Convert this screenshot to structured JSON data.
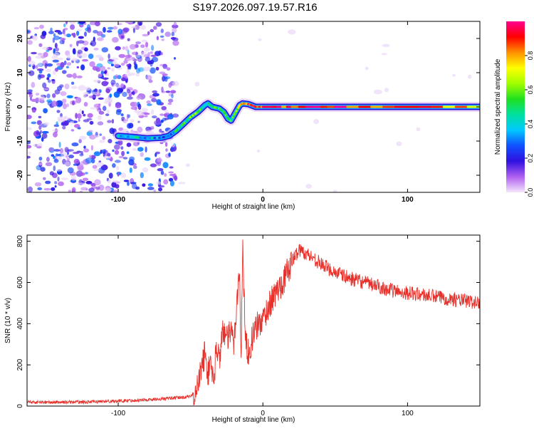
{
  "title": "S197.2026.097.19.57.R16",
  "chart_data": [
    {
      "type": "heatmap",
      "xlabel": "Height of straight line (km)",
      "ylabel": "Frequency (Hz)",
      "xlim": [
        -163,
        150
      ],
      "ylim": [
        -25,
        25
      ],
      "xticks": [
        -100,
        0,
        100
      ],
      "yticks": [
        -20,
        -10,
        0,
        10,
        20
      ],
      "colorbar": {
        "label": "Normalized spectral amplitude",
        "range": [
          0.0,
          1.0
        ],
        "ticks": [
          "0.0",
          "0.2",
          "0.4",
          "0.6",
          "0.8"
        ],
        "colors": [
          "#f4e6fb",
          "#b060f0",
          "#3010e0",
          "#1050ff",
          "#00c8ff",
          "#00e0a0",
          "#20e020",
          "#a0ff00",
          "#ffff00",
          "#ff9000",
          "#ff0000",
          "#ff0090"
        ]
      },
      "ridge": {
        "x": [
          -100,
          -90,
          -80,
          -70,
          -65,
          -60,
          -55,
          -50,
          -45,
          -40,
          -38,
          -35,
          -30,
          -27,
          -24,
          -22,
          -20,
          -18,
          -16,
          -14,
          -10,
          -5,
          0,
          20,
          50,
          100,
          150
        ],
        "y": [
          -8.5,
          -8.8,
          -9.2,
          -9.0,
          -8.5,
          -7.0,
          -5.0,
          -3.0,
          -1.5,
          0.5,
          1.0,
          0.0,
          -0.5,
          -1.5,
          -3.5,
          -4.0,
          -2.5,
          -1.0,
          0.5,
          1.0,
          0.8,
          0.0,
          0.0,
          0.0,
          0.0,
          0.0,
          0.0
        ],
        "amplitude": [
          0.35,
          0.38,
          0.36,
          0.32,
          0.25,
          0.45,
          0.5,
          0.55,
          0.6,
          0.5,
          0.45,
          0.55,
          0.5,
          0.55,
          0.45,
          0.5,
          0.55,
          0.65,
          0.75,
          0.8,
          0.85,
          0.95,
          0.9,
          0.9,
          0.88,
          0.85,
          0.8
        ]
      }
    },
    {
      "type": "line",
      "xlabel": "Height of straight line (km)",
      "ylabel": "SNR (10 * v/v)",
      "xlim": [
        -163,
        150
      ],
      "ylim": [
        0,
        830
      ],
      "xticks": [
        -100,
        0,
        100
      ],
      "yticks": [
        0,
        200,
        400,
        600,
        800
      ],
      "series": [
        {
          "name": "SNR",
          "color": "#e8302a",
          "x": [
            -163,
            -150,
            -120,
            -100,
            -80,
            -70,
            -60,
            -50,
            -45,
            -42,
            -40,
            -38,
            -36,
            -34,
            -32,
            -30,
            -28,
            -25,
            -22,
            -20,
            -18,
            -16,
            -15,
            -14,
            -12,
            -10,
            -8,
            -5,
            0,
            5,
            10,
            15,
            20,
            25,
            30,
            35,
            40,
            45,
            50,
            60,
            70,
            80,
            90,
            100,
            110,
            120,
            130,
            140,
            150
          ],
          "y": [
            20,
            18,
            20,
            25,
            30,
            35,
            40,
            45,
            90,
            200,
            260,
            150,
            230,
            100,
            300,
            220,
            380,
            320,
            360,
            300,
            520,
            640,
            200,
            780,
            320,
            260,
            310,
            380,
            420,
            500,
            560,
            620,
            700,
            760,
            740,
            720,
            690,
            670,
            650,
            620,
            600,
            580,
            560,
            550,
            540,
            530,
            520,
            510,
            500
          ]
        }
      ]
    }
  ]
}
